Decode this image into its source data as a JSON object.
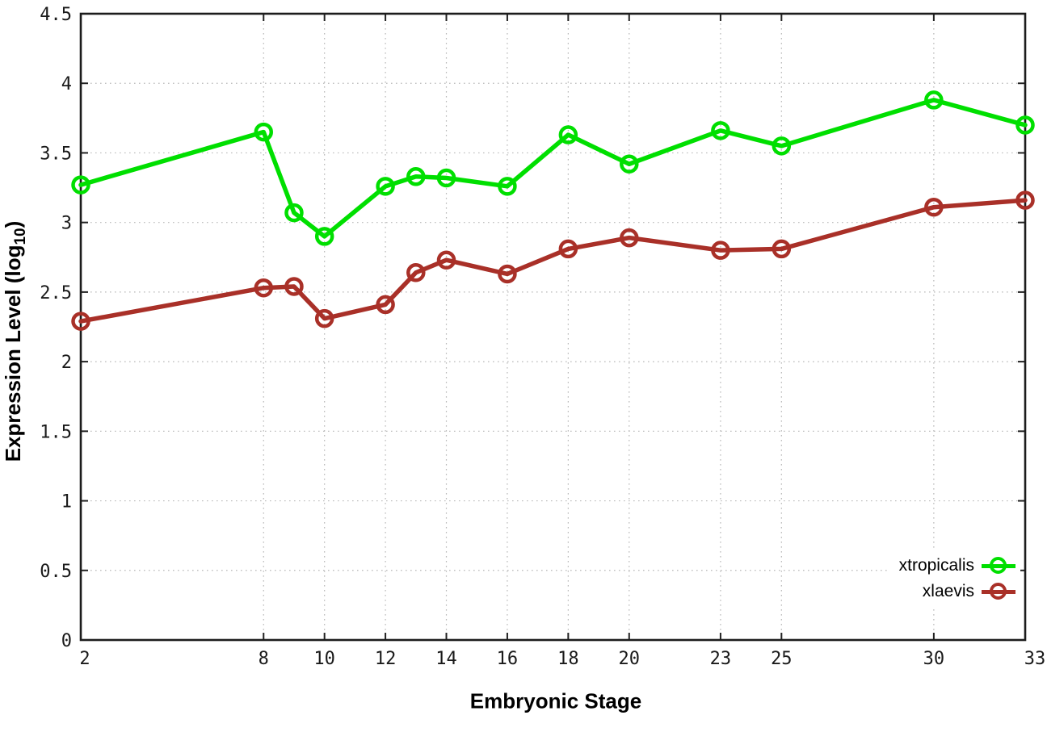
{
  "chart_data": {
    "type": "line",
    "title": "",
    "xlabel": "Embryonic Stage",
    "ylabel": "Expression Level (log10)",
    "ylabel_parts": {
      "prefix": "Expression Level (log",
      "sub": "10",
      "suffix": ")"
    },
    "xlim": [
      2,
      33
    ],
    "ylim": [
      0,
      4.5
    ],
    "grid": true,
    "grid_style": "dotted",
    "legend_position": "bottom-right",
    "x": [
      2,
      8,
      9,
      10,
      12,
      13,
      14,
      16,
      18,
      20,
      23,
      25,
      30,
      33
    ],
    "x_tick_values": [
      2,
      8,
      10,
      12,
      14,
      16,
      18,
      20,
      23,
      25,
      30,
      33
    ],
    "x_tick_labels": [
      "2",
      "8",
      "10",
      "12",
      "14",
      "16",
      "18",
      "20",
      "23",
      "25",
      "30",
      "33"
    ],
    "y_tick_values": [
      0,
      0.5,
      1,
      1.5,
      2,
      2.5,
      3,
      3.5,
      4,
      4.5
    ],
    "y_tick_labels": [
      "0",
      "0.5",
      "1",
      "1.5",
      "2",
      "2.5",
      "3",
      "3.5",
      "4",
      "4.5"
    ],
    "series": [
      {
        "name": "xtropicalis",
        "color": "#00DF00",
        "values": [
          3.27,
          3.65,
          3.07,
          2.9,
          3.26,
          3.33,
          3.32,
          3.26,
          3.63,
          3.42,
          3.66,
          3.55,
          3.88,
          3.7
        ]
      },
      {
        "name": "xlaevis",
        "color": "#A93028",
        "values": [
          2.29,
          2.53,
          2.54,
          2.31,
          2.41,
          2.64,
          2.73,
          2.63,
          2.81,
          2.89,
          2.8,
          2.81,
          3.11,
          3.16
        ]
      }
    ],
    "frame_color": "#1c1c1c",
    "gridline_color": "#b8b8b8",
    "tick_label_color": "#1a1a1a"
  }
}
